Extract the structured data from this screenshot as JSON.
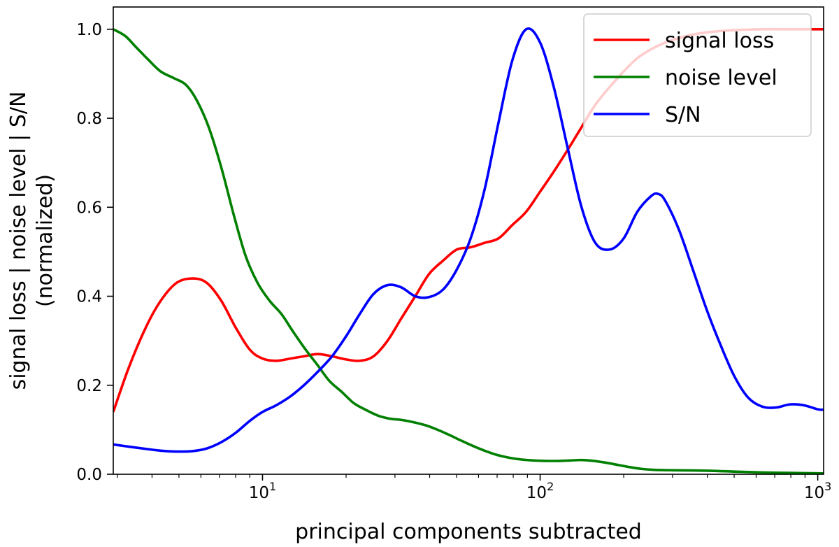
{
  "chart_data": {
    "type": "line",
    "title": "",
    "xlabel": "principal components subtracted",
    "ylabel_line1": "signal loss | noise level | S/N",
    "ylabel_line2": "(normalized)",
    "xscale": "log",
    "xlim": [
      2.9,
      1050
    ],
    "ylim": [
      0.0,
      1.05
    ],
    "grid": false,
    "legend_position": "top-right",
    "x_ticks": [
      {
        "value": 10,
        "base": "10",
        "exp": "1"
      },
      {
        "value": 100,
        "base": "10",
        "exp": "2"
      },
      {
        "value": 1000,
        "base": "10",
        "exp": "3"
      }
    ],
    "y_ticks": [
      {
        "value": 0.0,
        "label": "0.0"
      },
      {
        "value": 0.2,
        "label": "0.2"
      },
      {
        "value": 0.4,
        "label": "0.4"
      },
      {
        "value": 0.6,
        "label": "0.6"
      },
      {
        "value": 0.8,
        "label": "0.8"
      },
      {
        "value": 1.0,
        "label": "1.0"
      }
    ],
    "series": [
      {
        "name": "signal loss",
        "color": "#ff0000",
        "points": [
          [
            2.9,
            0.14
          ],
          [
            3.3,
            0.24
          ],
          [
            3.8,
            0.33
          ],
          [
            4.3,
            0.39
          ],
          [
            4.9,
            0.43
          ],
          [
            5.6,
            0.44
          ],
          [
            6.3,
            0.43
          ],
          [
            7.1,
            0.39
          ],
          [
            8.0,
            0.33
          ],
          [
            9.0,
            0.28
          ],
          [
            10.0,
            0.26
          ],
          [
            11.2,
            0.255
          ],
          [
            12.6,
            0.26
          ],
          [
            14.1,
            0.265
          ],
          [
            15.8,
            0.27
          ],
          [
            17.8,
            0.265
          ],
          [
            20.0,
            0.258
          ],
          [
            22.4,
            0.255
          ],
          [
            25.1,
            0.265
          ],
          [
            28.2,
            0.3
          ],
          [
            31.6,
            0.35
          ],
          [
            35.5,
            0.4
          ],
          [
            39.8,
            0.45
          ],
          [
            44.7,
            0.48
          ],
          [
            50.1,
            0.505
          ],
          [
            56.2,
            0.51
          ],
          [
            63.1,
            0.52
          ],
          [
            70.8,
            0.53
          ],
          [
            79.4,
            0.56
          ],
          [
            89.1,
            0.59
          ],
          [
            100,
            0.635
          ],
          [
            112,
            0.68
          ],
          [
            126,
            0.73
          ],
          [
            141,
            0.78
          ],
          [
            158,
            0.83
          ],
          [
            178,
            0.87
          ],
          [
            200,
            0.905
          ],
          [
            224,
            0.935
          ],
          [
            251,
            0.955
          ],
          [
            282,
            0.97
          ],
          [
            316,
            0.98
          ],
          [
            355,
            0.988
          ],
          [
            398,
            0.993
          ],
          [
            447,
            0.996
          ],
          [
            501,
            0.998
          ],
          [
            631,
            1.0
          ],
          [
            794,
            1.0
          ],
          [
            1000,
            1.0
          ],
          [
            1050,
            1.0
          ]
        ]
      },
      {
        "name": "noise level",
        "color": "#008000",
        "points": [
          [
            2.9,
            1.0
          ],
          [
            3.2,
            0.985
          ],
          [
            3.5,
            0.96
          ],
          [
            3.9,
            0.93
          ],
          [
            4.3,
            0.905
          ],
          [
            4.8,
            0.89
          ],
          [
            5.3,
            0.875
          ],
          [
            5.8,
            0.84
          ],
          [
            6.4,
            0.78
          ],
          [
            7.1,
            0.69
          ],
          [
            7.9,
            0.58
          ],
          [
            8.7,
            0.49
          ],
          [
            9.6,
            0.43
          ],
          [
            10.6,
            0.39
          ],
          [
            11.7,
            0.36
          ],
          [
            12.9,
            0.32
          ],
          [
            14.3,
            0.28
          ],
          [
            15.8,
            0.245
          ],
          [
            17.4,
            0.21
          ],
          [
            19.3,
            0.185
          ],
          [
            21.3,
            0.16
          ],
          [
            23.5,
            0.145
          ],
          [
            26.0,
            0.132
          ],
          [
            28.7,
            0.125
          ],
          [
            31.7,
            0.122
          ],
          [
            35.0,
            0.117
          ],
          [
            38.7,
            0.11
          ],
          [
            42.7,
            0.1
          ],
          [
            47.2,
            0.088
          ],
          [
            52.2,
            0.075
          ],
          [
            57.6,
            0.063
          ],
          [
            63.7,
            0.052
          ],
          [
            70.3,
            0.043
          ],
          [
            77.7,
            0.037
          ],
          [
            85.8,
            0.033
          ],
          [
            94.8,
            0.031
          ],
          [
            104.8,
            0.03
          ],
          [
            115.8,
            0.03
          ],
          [
            127.9,
            0.031
          ],
          [
            141.3,
            0.032
          ],
          [
            156.1,
            0.03
          ],
          [
            172.4,
            0.026
          ],
          [
            190.5,
            0.021
          ],
          [
            210.4,
            0.016
          ],
          [
            232.4,
            0.012
          ],
          [
            256.8,
            0.01
          ],
          [
            300,
            0.009
          ],
          [
            400,
            0.008
          ],
          [
            500,
            0.006
          ],
          [
            630,
            0.004
          ],
          [
            800,
            0.003
          ],
          [
            1000,
            0.002
          ],
          [
            1050,
            0.002
          ]
        ]
      },
      {
        "name": "S/N",
        "color": "#0000ff",
        "points": [
          [
            2.9,
            0.067
          ],
          [
            3.3,
            0.062
          ],
          [
            3.8,
            0.057
          ],
          [
            4.3,
            0.053
          ],
          [
            4.9,
            0.051
          ],
          [
            5.6,
            0.052
          ],
          [
            6.3,
            0.058
          ],
          [
            7.1,
            0.072
          ],
          [
            8.0,
            0.093
          ],
          [
            9.0,
            0.12
          ],
          [
            10.0,
            0.14
          ],
          [
            11.2,
            0.155
          ],
          [
            12.6,
            0.175
          ],
          [
            14.1,
            0.2
          ],
          [
            15.8,
            0.23
          ],
          [
            17.8,
            0.265
          ],
          [
            20.0,
            0.31
          ],
          [
            22.4,
            0.36
          ],
          [
            25.1,
            0.405
          ],
          [
            28.2,
            0.425
          ],
          [
            31.6,
            0.42
          ],
          [
            35.5,
            0.4
          ],
          [
            39.8,
            0.398
          ],
          [
            44.7,
            0.415
          ],
          [
            50.1,
            0.46
          ],
          [
            56.2,
            0.53
          ],
          [
            63.1,
            0.64
          ],
          [
            70.8,
            0.79
          ],
          [
            79.4,
            0.93
          ],
          [
            89.1,
            1.0
          ],
          [
            100,
            0.97
          ],
          [
            112,
            0.87
          ],
          [
            126,
            0.73
          ],
          [
            141,
            0.6
          ],
          [
            158,
            0.52
          ],
          [
            178,
            0.505
          ],
          [
            200,
            0.53
          ],
          [
            224,
            0.59
          ],
          [
            251,
            0.625
          ],
          [
            266,
            0.63
          ],
          [
            282,
            0.615
          ],
          [
            316,
            0.55
          ],
          [
            355,
            0.46
          ],
          [
            398,
            0.37
          ],
          [
            447,
            0.29
          ],
          [
            501,
            0.22
          ],
          [
            562,
            0.172
          ],
          [
            631,
            0.152
          ],
          [
            708,
            0.15
          ],
          [
            794,
            0.157
          ],
          [
            891,
            0.155
          ],
          [
            1000,
            0.146
          ],
          [
            1050,
            0.145
          ]
        ]
      }
    ]
  }
}
